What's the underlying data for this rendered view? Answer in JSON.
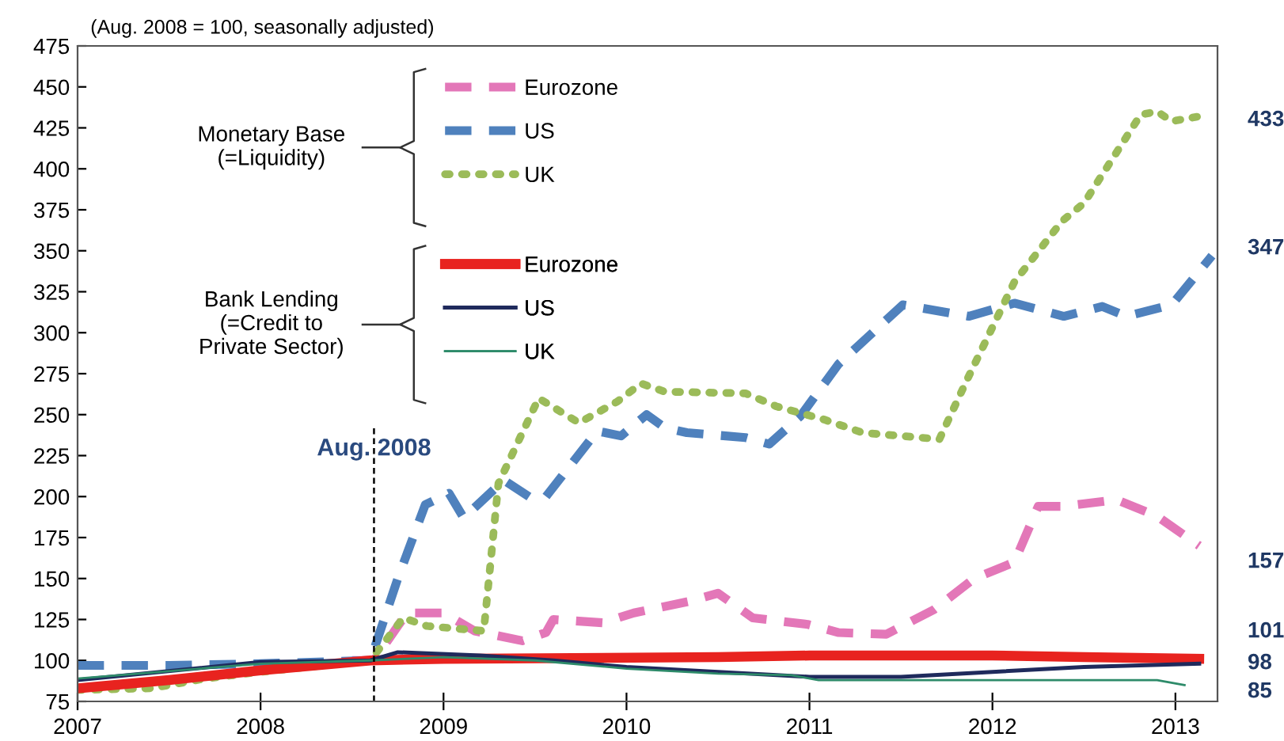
{
  "chart_data": {
    "type": "line",
    "title": "(Aug. 2008 = 100, seasonally adjusted)",
    "xlim": [
      2007,
      2013.23
    ],
    "xticks": [
      2007,
      2008,
      2009,
      2010,
      2011,
      2012,
      2013
    ],
    "ylim": [
      75,
      475
    ],
    "yticks": [
      75,
      100,
      125,
      150,
      175,
      200,
      225,
      250,
      275,
      300,
      325,
      350,
      375,
      400,
      425,
      450,
      475
    ],
    "grid": false,
    "legend": "top left",
    "ref_lines": [
      {
        "axis": "x",
        "value": 2008.62,
        "label": "Aug. 2008",
        "color": "#000000",
        "line_style": "dashed"
      }
    ],
    "annotations": [
      "Monetary Base\n(=Liquidity)",
      "Bank Lending\n(=Credit to\nPrivate Sector)",
      "433",
      "347",
      "157",
      "101",
      "98",
      "85"
    ],
    "series": [
      {
        "name": "Eurozone",
        "color": "#e377b8",
        "line_style": "dashed",
        "x": [
          2008.5,
          2008.62,
          2008.8,
          2009.0,
          2009.17,
          2009.43,
          2009.56,
          2009.6,
          2009.87,
          2010.04,
          2010.34,
          2010.5,
          2010.69,
          2010.99,
          2011.16,
          2011.42,
          2011.68,
          2011.9,
          2012.12,
          2012.25,
          2012.38,
          2012.68,
          2012.9,
          2013.13
        ],
        "values": [
          100,
          100,
          129,
          129,
          118,
          112,
          117,
          125,
          123,
          129,
          136,
          141,
          126,
          122,
          117,
          116,
          131,
          150,
          160,
          194,
          194,
          198,
          188,
          170
        ]
      },
      {
        "name": "US",
        "color": "#4f81bd",
        "line_style": "dashed",
        "x": [
          2007,
          2007.5,
          2008.0,
          2008.6,
          2008.75,
          2008.9,
          2009.03,
          2009.11,
          2009.33,
          2009.48,
          2009.56,
          2009.84,
          2009.97,
          2010.11,
          2010.21,
          2010.33,
          2010.65,
          2010.78,
          2010.95,
          2011.16,
          2011.51,
          2011.87,
          2012.12,
          2012.39,
          2012.6,
          2012.73,
          2012.98,
          2013.2
        ],
        "values": [
          97,
          97,
          98,
          100,
          150,
          195,
          202,
          187,
          210,
          199,
          200,
          240,
          237,
          250,
          242,
          239,
          236,
          232,
          249,
          281,
          317,
          310,
          318,
          310,
          316,
          310,
          317,
          347
        ]
      },
      {
        "name": "UK",
        "color": "#9bbb59",
        "line_style": "dotted",
        "x": [
          2007,
          2007.4,
          2007.7,
          2008.0,
          2008.6,
          2008.78,
          2008.91,
          2009.22,
          2009.3,
          2009.52,
          2009.74,
          2009.95,
          2010.08,
          2010.21,
          2010.65,
          2010.82,
          2011.08,
          2011.29,
          2011.71,
          2011.86,
          2012.12,
          2012.38,
          2012.5,
          2012.81,
          2012.9,
          2012.98,
          2013.13
        ],
        "values": [
          82,
          83,
          89,
          93,
          100,
          126,
          121,
          118,
          208,
          260,
          245,
          258,
          269,
          264,
          263,
          255,
          247,
          239,
          235,
          271,
          331,
          368,
          379,
          433,
          435,
          429,
          432
        ]
      },
      {
        "name": "Eurozone",
        "color": "#e8231f",
        "line_style": "solid",
        "x": [
          2007,
          2007.5,
          2008.0,
          2008.6,
          2009.0,
          2010.5,
          2011.0,
          2012.0,
          2012.5,
          2013.13
        ],
        "values": [
          83,
          88,
          94,
          100,
          101,
          102,
          103,
          103,
          102,
          101
        ]
      },
      {
        "name": "US",
        "color": "#1f2a5c",
        "line_style": "solid",
        "x": [
          2007,
          2008.0,
          2008.6,
          2008.75,
          2009.2,
          2009.6,
          2010.0,
          2010.5,
          2011.0,
          2011.5,
          2012.0,
          2012.5,
          2013.13
        ],
        "values": [
          88,
          99,
          100,
          105,
          103,
          100,
          96,
          93,
          90,
          90,
          93,
          96,
          98
        ]
      },
      {
        "name": "UK",
        "color": "#2e8b6a",
        "line_style": "solid",
        "x": [
          2007,
          2008.0,
          2008.6,
          2009.0,
          2009.5,
          2010.0,
          2010.5,
          2010.9,
          2011.05,
          2012.0,
          2012.9,
          2013.05
        ],
        "values": [
          89,
          98,
          100,
          102,
          100,
          95,
          92,
          91,
          88,
          88,
          88,
          85
        ]
      }
    ]
  }
}
